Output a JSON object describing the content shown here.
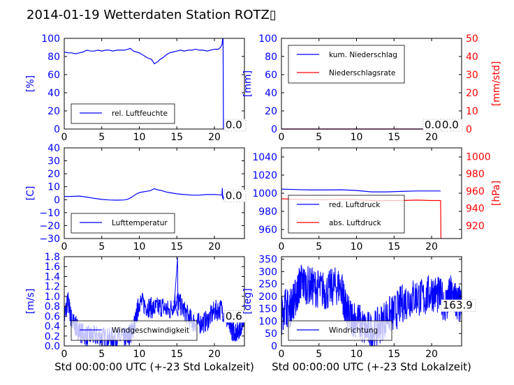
{
  "figure": {
    "title": "2014-01-19 Wetterdaten Station ROTZ▯"
  },
  "colors": {
    "blue": "#0000ff",
    "red": "#ff0000",
    "black": "#000000"
  },
  "chart_data": [
    {
      "type": "line",
      "panel": "humidity",
      "xlim": [
        0,
        24
      ],
      "ylim": [
        0,
        100
      ],
      "xticks": [
        "0",
        "5",
        "10",
        "15",
        "20"
      ],
      "yticks": [
        "0",
        "20",
        "40",
        "60",
        "80",
        "100"
      ],
      "ylabel": "[%]",
      "legend": [
        "rel. Luftfeuchte"
      ],
      "legend_loc": "lower-left",
      "annotation": "0.0",
      "series": [
        {
          "name": "rel. Luftfeuchte",
          "color": "#0000ff",
          "x": [
            0,
            0.5,
            1,
            1.5,
            2,
            2.5,
            3,
            3.5,
            4,
            4.5,
            5,
            5.5,
            6,
            6.5,
            7,
            7.5,
            8,
            8.5,
            8.8,
            9.2,
            9.6,
            10,
            10.4,
            10.8,
            11.2,
            11.6,
            12,
            12.4,
            12.8,
            13.2,
            13.6,
            14,
            14.5,
            15,
            15.5,
            16,
            16.5,
            17,
            17.5,
            18,
            18.5,
            19,
            19.5,
            20,
            20.5,
            20.8,
            21.0,
            21.1,
            21.15,
            21.2
          ],
          "y": [
            85,
            84,
            84,
            83,
            84,
            85,
            87,
            86,
            86,
            87,
            86,
            87,
            87,
            86,
            87,
            87,
            87,
            88,
            89,
            86,
            85,
            84,
            82,
            80,
            78,
            77,
            72,
            74,
            77,
            79,
            82,
            84,
            85,
            86,
            87,
            86,
            87,
            87,
            88,
            87,
            87,
            86,
            87,
            88,
            88,
            90,
            93,
            99,
            100,
            0
          ]
        }
      ]
    },
    {
      "type": "line",
      "panel": "precipitation",
      "xlim": [
        0,
        24
      ],
      "ylim": [
        0,
        100
      ],
      "y2lim": [
        0,
        50
      ],
      "xticks": [
        "0",
        "5",
        "10",
        "15",
        "20"
      ],
      "yticks": [
        "0",
        "20",
        "40",
        "60",
        "80",
        "100"
      ],
      "y2ticks": [
        "0",
        "10",
        "20",
        "30",
        "40",
        "50"
      ],
      "ylabel": "[mm]",
      "y2label": "[mm/std]",
      "legend": [
        "kum. Niederschlag",
        "Niederschlagsrate"
      ],
      "legend_loc": "upper-left",
      "annotation": "0.0",
      "annotation2": "0.0",
      "series": [
        {
          "name": "kum. Niederschlag",
          "color": "#0000ff",
          "axis": "left",
          "x": [
            0,
            21.2
          ],
          "y": [
            0,
            0
          ]
        },
        {
          "name": "Niederschlagsrate",
          "color": "#ff0000",
          "axis": "right",
          "x": [
            0,
            21.2
          ],
          "y": [
            0,
            0
          ]
        }
      ]
    },
    {
      "type": "line",
      "panel": "temperature",
      "xlim": [
        0,
        24
      ],
      "ylim": [
        -30,
        40
      ],
      "xticks": [
        "0",
        "5",
        "10",
        "15",
        "20"
      ],
      "yticks": [
        "−30",
        "−20",
        "−10",
        "0",
        "10",
        "20",
        "30",
        "40"
      ],
      "ylabel": "[C]",
      "legend": [
        "Lufttemperatur"
      ],
      "legend_loc": "lower-left",
      "annotation": "0.0",
      "series": [
        {
          "name": "Lufttemperatur",
          "color": "#0000ff",
          "x": [
            0,
            1,
            2,
            3,
            4,
            5,
            6,
            7,
            8,
            8.5,
            9,
            9.5,
            10,
            10.5,
            11,
            11.5,
            12,
            12.5,
            13,
            13.5,
            14,
            15,
            16,
            17,
            18,
            19,
            20,
            20.5,
            21,
            21.05,
            21.1,
            21.15,
            21.2
          ],
          "y": [
            2.5,
            2.5,
            2.8,
            2,
            1,
            0.2,
            -0.2,
            -0.4,
            -0.2,
            0.5,
            2,
            4,
            5.5,
            6,
            6.5,
            7,
            8.5,
            7.5,
            7,
            6,
            5.5,
            4.5,
            4,
            3.5,
            3.5,
            4,
            4,
            3.8,
            3.5,
            9,
            1,
            3,
            0
          ]
        }
      ]
    },
    {
      "type": "line",
      "panel": "pressure",
      "xlim": [
        0,
        24
      ],
      "ylim": [
        950,
        1050
      ],
      "y2lim": [
        905,
        1010
      ],
      "xticks": [
        "0",
        "5",
        "10",
        "15",
        "20"
      ],
      "yticks": [
        "960",
        "980",
        "1000",
        "1020",
        "1040"
      ],
      "y2ticks": [
        "920",
        "940",
        "960",
        "980",
        "1000"
      ],
      "y2label": "[hPa]",
      "legend": [
        "red. Luftdruck",
        "abs. Luftdruck"
      ],
      "legend_loc": "lower-left",
      "series": [
        {
          "name": "red. Luftdruck",
          "color": "#0000ff",
          "axis": "left",
          "x": [
            0,
            2,
            4,
            6,
            8,
            10,
            12,
            14,
            16,
            18,
            20,
            21.2
          ],
          "y": [
            1004.5,
            1004,
            1003.5,
            1003.5,
            1003.8,
            1003,
            1001.5,
            1001.5,
            1002,
            1002.5,
            1002.5,
            1002.5
          ]
        },
        {
          "name": "abs. Luftdruck",
          "color": "#ff0000",
          "axis": "right",
          "x": [
            0,
            2,
            4,
            6,
            8,
            10,
            12,
            14,
            16,
            18,
            20,
            21.2,
            21.25
          ],
          "y": [
            951,
            950.5,
            950,
            950,
            950.5,
            950,
            949,
            949,
            949,
            949.5,
            949,
            949,
            905
          ]
        }
      ]
    },
    {
      "type": "line",
      "panel": "wind-speed",
      "xlim": [
        0,
        24
      ],
      "ylim": [
        0,
        1.8
      ],
      "xticks": [
        "0",
        "5",
        "10",
        "15",
        "20"
      ],
      "yticks": [
        "0.0",
        "0.2",
        "0.4",
        "0.6",
        "0.8",
        "1.0",
        "1.2",
        "1.4",
        "1.6",
        "1.8"
      ],
      "ylabel": "[m/s]",
      "xlabel": "Std 00:00:00 UTC (+-23 Std Lokalzeit)",
      "legend": [
        "Windgeschwindigkeit"
      ],
      "legend_loc": "lower-left",
      "annotation": "0.6",
      "series": [
        {
          "name": "Windgeschwindigkeit",
          "color": "#0000ff",
          "noisy": true,
          "x": [
            0,
            0.5,
            1,
            1.5,
            2,
            3,
            4,
            5,
            6,
            7,
            8,
            8.5,
            9,
            9.5,
            10,
            11,
            12,
            13,
            14,
            15,
            16,
            17,
            18,
            19,
            20,
            21,
            22,
            22.5,
            23,
            23.5,
            24
          ],
          "y": [
            0.6,
            0.9,
            0.5,
            0.4,
            0.3,
            0.2,
            0.2,
            0.18,
            0.15,
            0.17,
            0.15,
            0.2,
            0.3,
            0.5,
            0.9,
            0.8,
            0.75,
            0.8,
            0.7,
            0.95,
            0.7,
            0.5,
            0.45,
            0.5,
            0.7,
            0.75,
            0.4,
            0.3,
            0.3,
            0.4,
            0.6
          ]
        }
      ]
    },
    {
      "type": "line",
      "panel": "wind-direction",
      "xlim": [
        0,
        24
      ],
      "ylim": [
        0,
        360
      ],
      "xticks": [
        "0",
        "5",
        "10",
        "15",
        "20"
      ],
      "yticks": [
        "0",
        "50",
        "100",
        "150",
        "200",
        "250",
        "300",
        "350"
      ],
      "ylabel": "[deg]",
      "xlabel": "Std 00:00:00 UTC (+-23 Std Lokalzeit)",
      "legend": [
        "Windrichtung"
      ],
      "legend_loc": "lower-left",
      "annotation": "163.9",
      "series": [
        {
          "name": "Windrichtung",
          "color": "#0000ff",
          "noisy": true,
          "x": [
            0,
            0.5,
            1,
            1.5,
            2,
            2.5,
            3,
            4,
            5,
            6,
            7,
            8,
            8.5,
            9,
            10,
            11,
            12,
            13,
            14,
            15,
            16,
            17,
            18,
            19,
            20,
            21,
            22,
            22.5,
            23,
            23.5,
            24
          ],
          "y": [
            120,
            170,
            140,
            180,
            200,
            260,
            250,
            240,
            230,
            220,
            240,
            240,
            150,
            120,
            110,
            70,
            60,
            80,
            120,
            130,
            170,
            190,
            200,
            190,
            220,
            200,
            170,
            210,
            190,
            170,
            160
          ]
        }
      ]
    }
  ]
}
